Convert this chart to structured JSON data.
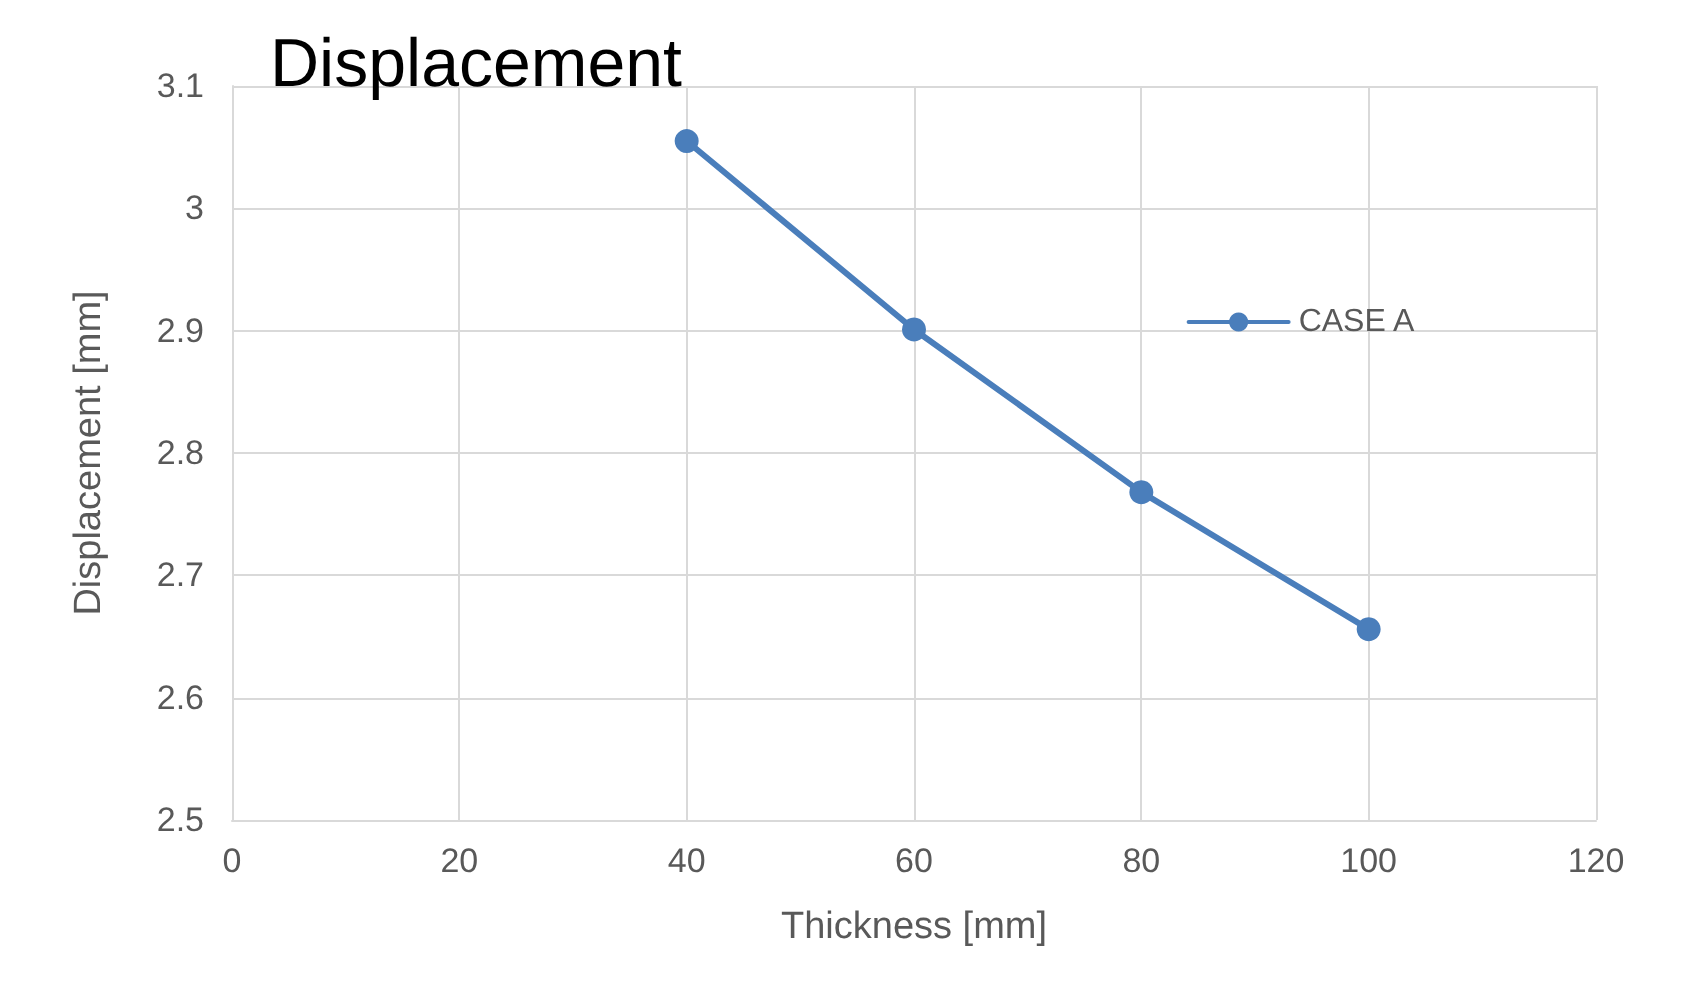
{
  "chart_data": {
    "type": "line",
    "title": "Displacement",
    "xlabel": "Thickness [mm]",
    "ylabel": "Displacement [mm]",
    "x": [
      40,
      60,
      80,
      100
    ],
    "series": [
      {
        "name": "CASE A",
        "color": "#4a7ebb",
        "values": [
          3.055,
          2.901,
          2.768,
          2.656
        ]
      }
    ],
    "xlim": [
      0,
      120
    ],
    "xticks": [
      0,
      20,
      40,
      60,
      80,
      100,
      120
    ],
    "ylim": [
      2.5,
      3.1
    ],
    "yticks": [
      2.5,
      2.6,
      2.7,
      2.8,
      2.9,
      3,
      3.1
    ],
    "grid": true,
    "legend": "right",
    "marker": "circle",
    "line_style": "solid"
  }
}
